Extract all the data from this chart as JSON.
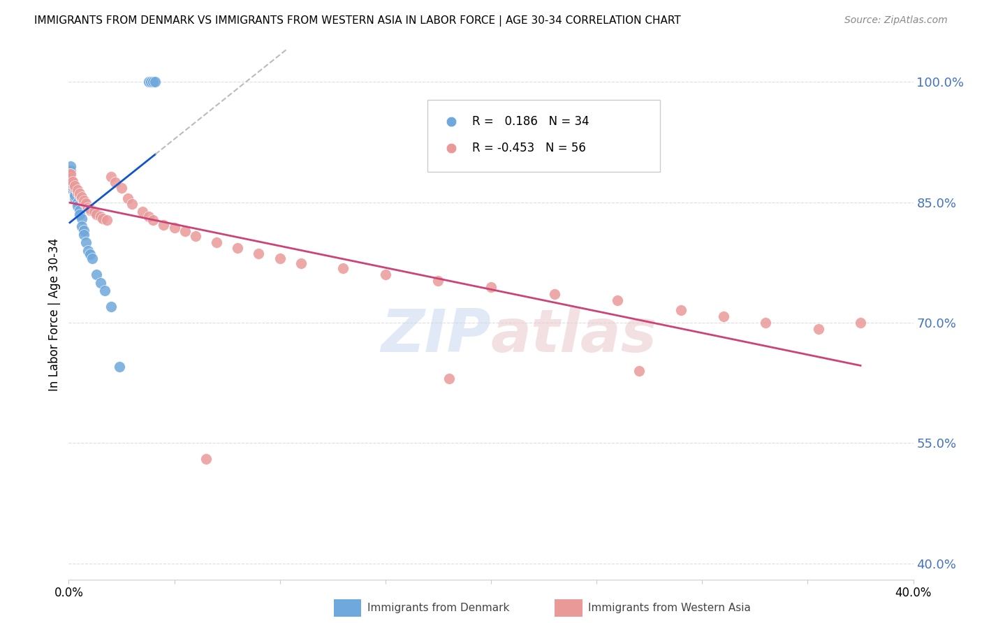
{
  "title": "IMMIGRANTS FROM DENMARK VS IMMIGRANTS FROM WESTERN ASIA IN LABOR FORCE | AGE 30-34 CORRELATION CHART",
  "source": "Source: ZipAtlas.com",
  "ylabel": "In Labor Force | Age 30-34",
  "xlim": [
    0.0,
    0.4
  ],
  "ylim": [
    0.38,
    1.04
  ],
  "yticks": [
    0.4,
    0.55,
    0.7,
    0.85,
    1.0
  ],
  "ytick_labels": [
    "40.0%",
    "55.0%",
    "70.0%",
    "85.0%",
    "100.0%"
  ],
  "xticks": [
    0.0,
    0.05,
    0.1,
    0.15,
    0.2,
    0.25,
    0.3,
    0.35,
    0.4
  ],
  "xtick_labels": [
    "0.0%",
    "",
    "",
    "",
    "",
    "",
    "",
    "",
    "40.0%"
  ],
  "legend_r_denmark": "0.186",
  "legend_n_denmark": 34,
  "legend_r_western_asia": "-0.453",
  "legend_n_western_asia": 56,
  "denmark_color": "#6fa8dc",
  "western_asia_color": "#ea9999",
  "denmark_line_color": "#1155cc",
  "western_asia_line_color": "#cc4477",
  "trend_line_dash_color": "#bbbbbb",
  "denmark_x": [
    0.0005,
    0.001,
    0.001,
    0.001,
    0.001,
    0.0015,
    0.002,
    0.002,
    0.002,
    0.003,
    0.003,
    0.003,
    0.003,
    0.004,
    0.004,
    0.005,
    0.005,
    0.006,
    0.006,
    0.007,
    0.007,
    0.008,
    0.009,
    0.01,
    0.011,
    0.013,
    0.015,
    0.017,
    0.02,
    0.024,
    0.038,
    0.039,
    0.04,
    0.041
  ],
  "denmark_y": [
    0.88,
    0.875,
    0.87,
    0.89,
    0.895,
    0.875,
    0.865,
    0.87,
    0.875,
    0.855,
    0.86,
    0.862,
    0.858,
    0.85,
    0.845,
    0.84,
    0.835,
    0.83,
    0.82,
    0.815,
    0.81,
    0.8,
    0.79,
    0.785,
    0.78,
    0.76,
    0.75,
    0.74,
    0.72,
    0.645,
    1.0,
    1.0,
    1.0,
    1.0
  ],
  "western_asia_x": [
    0.0005,
    0.001,
    0.001,
    0.002,
    0.002,
    0.003,
    0.003,
    0.004,
    0.004,
    0.005,
    0.005,
    0.006,
    0.006,
    0.007,
    0.007,
    0.008,
    0.008,
    0.009,
    0.01,
    0.01,
    0.012,
    0.013,
    0.015,
    0.016,
    0.018,
    0.02,
    0.022,
    0.025,
    0.028,
    0.03,
    0.035,
    0.038,
    0.04,
    0.045,
    0.05,
    0.055,
    0.06,
    0.07,
    0.08,
    0.09,
    0.1,
    0.11,
    0.13,
    0.15,
    0.175,
    0.2,
    0.23,
    0.26,
    0.29,
    0.31,
    0.33,
    0.355,
    0.375,
    0.27,
    0.18,
    0.065
  ],
  "western_asia_y": [
    0.885,
    0.88,
    0.885,
    0.872,
    0.876,
    0.868,
    0.871,
    0.862,
    0.865,
    0.858,
    0.861,
    0.855,
    0.857,
    0.85,
    0.852,
    0.847,
    0.849,
    0.844,
    0.84,
    0.842,
    0.838,
    0.835,
    0.832,
    0.83,
    0.828,
    0.882,
    0.875,
    0.868,
    0.855,
    0.848,
    0.838,
    0.832,
    0.828,
    0.822,
    0.818,
    0.814,
    0.808,
    0.8,
    0.793,
    0.786,
    0.78,
    0.774,
    0.768,
    0.76,
    0.752,
    0.744,
    0.736,
    0.728,
    0.716,
    0.708,
    0.7,
    0.692,
    0.7,
    0.64,
    0.63,
    0.53
  ],
  "background_color": "#ffffff",
  "grid_color": "#dddddd"
}
